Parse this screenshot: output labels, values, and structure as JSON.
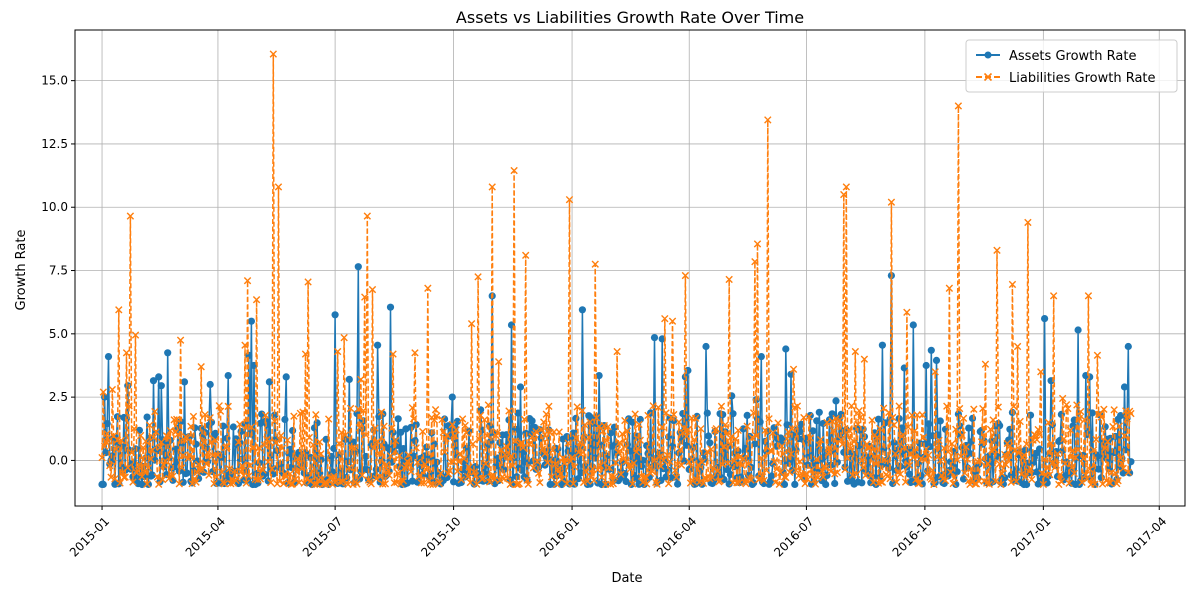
{
  "chart_data": {
    "type": "line",
    "title": "Assets vs Liabilities Growth Rate Over Time",
    "xlabel": "Date",
    "ylabel": "Growth Rate",
    "grid": true,
    "legend_position": "upper-right",
    "x_range": [
      "2014-12-11",
      "2017-04-21"
    ],
    "ylim": [
      -1.8,
      17.0
    ],
    "x_ticks": [
      "2015-01",
      "2015-04",
      "2015-07",
      "2015-10",
      "2016-01",
      "2016-04",
      "2016-07",
      "2016-10",
      "2017-01",
      "2017-04"
    ],
    "y_ticks": [
      "0.0",
      "2.5",
      "5.0",
      "7.5",
      "10.0",
      "12.5",
      "15.0"
    ],
    "date_start": "2015-01-01",
    "date_end": "2017-03-10",
    "series": [
      {
        "name": "Assets Growth Rate",
        "color": "#1f77b4",
        "marker": "circle",
        "line_style": "solid",
        "peaks": [
          [
            "2015-01-03",
            2.5
          ],
          [
            "2015-01-06",
            4.1
          ],
          [
            "2015-01-21",
            2.95
          ],
          [
            "2015-02-10",
            3.15
          ],
          [
            "2015-02-14",
            3.3
          ],
          [
            "2015-02-16",
            2.95
          ],
          [
            "2015-02-21",
            4.25
          ],
          [
            "2015-03-06",
            3.1
          ],
          [
            "2015-03-26",
            3.0
          ],
          [
            "2015-04-09",
            3.35
          ],
          [
            "2015-04-25",
            4.15
          ],
          [
            "2015-04-27",
            5.5
          ],
          [
            "2015-04-29",
            3.75
          ],
          [
            "2015-05-11",
            3.1
          ],
          [
            "2015-05-24",
            3.3
          ],
          [
            "2015-07-01",
            5.75
          ],
          [
            "2015-07-12",
            3.2
          ],
          [
            "2015-07-19",
            7.65
          ],
          [
            "2015-08-03",
            4.55
          ],
          [
            "2015-08-13",
            6.05
          ],
          [
            "2015-09-30",
            2.5
          ],
          [
            "2015-10-22",
            2.0
          ],
          [
            "2015-10-31",
            6.5
          ],
          [
            "2015-11-15",
            5.35
          ],
          [
            "2015-11-22",
            2.9
          ],
          [
            "2016-01-09",
            5.95
          ],
          [
            "2016-01-22",
            3.35
          ],
          [
            "2016-03-05",
            4.85
          ],
          [
            "2016-03-11",
            4.8
          ],
          [
            "2016-03-29",
            3.3
          ],
          [
            "2016-03-31",
            3.55
          ],
          [
            "2016-04-14",
            4.5
          ],
          [
            "2016-05-04",
            2.55
          ],
          [
            "2016-05-23",
            2.4
          ],
          [
            "2016-05-27",
            4.1
          ],
          [
            "2016-06-15",
            4.4
          ],
          [
            "2016-06-19",
            3.4
          ],
          [
            "2016-07-11",
            1.9
          ],
          [
            "2016-07-24",
            2.35
          ],
          [
            "2016-08-29",
            4.55
          ],
          [
            "2016-09-05",
            7.3
          ],
          [
            "2016-09-15",
            3.65
          ],
          [
            "2016-09-22",
            5.35
          ],
          [
            "2016-10-02",
            3.75
          ],
          [
            "2016-10-06",
            4.35
          ],
          [
            "2016-10-10",
            3.95
          ],
          [
            "2017-01-02",
            5.6
          ],
          [
            "2017-01-07",
            3.15
          ],
          [
            "2017-01-28",
            5.15
          ],
          [
            "2017-02-03",
            3.35
          ],
          [
            "2017-02-06",
            3.3
          ],
          [
            "2017-02-14",
            1.8
          ],
          [
            "2017-03-05",
            2.9
          ],
          [
            "2017-03-08",
            4.5
          ],
          [
            "2017-03-10",
            -0.05
          ]
        ],
        "baseline_range": [
          -0.95,
          1.9
        ]
      },
      {
        "name": "Liabilities Growth Rate",
        "color": "#ff7f0e",
        "marker": "x",
        "line_style": "dashed",
        "peaks": [
          [
            "2015-01-02",
            2.7
          ],
          [
            "2015-01-09",
            2.8
          ],
          [
            "2015-01-14",
            5.95
          ],
          [
            "2015-01-20",
            4.25
          ],
          [
            "2015-01-23",
            9.65
          ],
          [
            "2015-01-27",
            4.95
          ],
          [
            "2015-03-03",
            4.75
          ],
          [
            "2015-03-19",
            3.7
          ],
          [
            "2015-04-22",
            4.55
          ],
          [
            "2015-04-24",
            7.1
          ],
          [
            "2015-05-01",
            6.35
          ],
          [
            "2015-05-14",
            16.05
          ],
          [
            "2015-05-18",
            10.8
          ],
          [
            "2015-06-08",
            4.2
          ],
          [
            "2015-06-10",
            7.05
          ],
          [
            "2015-07-03",
            4.3
          ],
          [
            "2015-07-08",
            4.85
          ],
          [
            "2015-07-21",
            3.2
          ],
          [
            "2015-07-24",
            6.45
          ],
          [
            "2015-07-26",
            9.65
          ],
          [
            "2015-07-30",
            6.75
          ],
          [
            "2015-08-15",
            4.2
          ],
          [
            "2015-09-01",
            4.25
          ],
          [
            "2015-09-11",
            6.8
          ],
          [
            "2015-10-15",
            5.4
          ],
          [
            "2015-10-20",
            7.25
          ],
          [
            "2015-10-31",
            10.8
          ],
          [
            "2015-11-05",
            3.9
          ],
          [
            "2015-11-17",
            11.45
          ],
          [
            "2015-11-26",
            8.1
          ],
          [
            "2015-12-30",
            10.3
          ],
          [
            "2016-01-19",
            7.75
          ],
          [
            "2016-02-05",
            4.3
          ],
          [
            "2016-03-13",
            5.6
          ],
          [
            "2016-03-19",
            5.5
          ],
          [
            "2016-03-29",
            7.3
          ],
          [
            "2016-05-02",
            7.15
          ],
          [
            "2016-05-22",
            7.85
          ],
          [
            "2016-05-24",
            8.55
          ],
          [
            "2016-06-01",
            13.45
          ],
          [
            "2016-06-21",
            3.6
          ],
          [
            "2016-07-30",
            10.5
          ],
          [
            "2016-08-01",
            10.8
          ],
          [
            "2016-08-08",
            4.3
          ],
          [
            "2016-08-15",
            4.0
          ],
          [
            "2016-09-05",
            10.2
          ],
          [
            "2016-09-17",
            5.85
          ],
          [
            "2016-10-09",
            3.5
          ],
          [
            "2016-10-20",
            6.8
          ],
          [
            "2016-10-27",
            14.0
          ],
          [
            "2016-11-17",
            3.8
          ],
          [
            "2016-11-26",
            8.3
          ],
          [
            "2016-12-08",
            6.95
          ],
          [
            "2016-12-12",
            4.5
          ],
          [
            "2016-12-20",
            9.4
          ],
          [
            "2016-12-30",
            3.5
          ],
          [
            "2017-01-09",
            6.5
          ],
          [
            "2017-01-16",
            2.45
          ],
          [
            "2017-02-05",
            6.5
          ],
          [
            "2017-02-12",
            4.15
          ],
          [
            "2017-02-25",
            2.0
          ],
          [
            "2017-03-07",
            1.65
          ],
          [
            "2017-03-10",
            1.85
          ]
        ],
        "baseline_range": [
          -0.95,
          2.2
        ]
      }
    ]
  }
}
